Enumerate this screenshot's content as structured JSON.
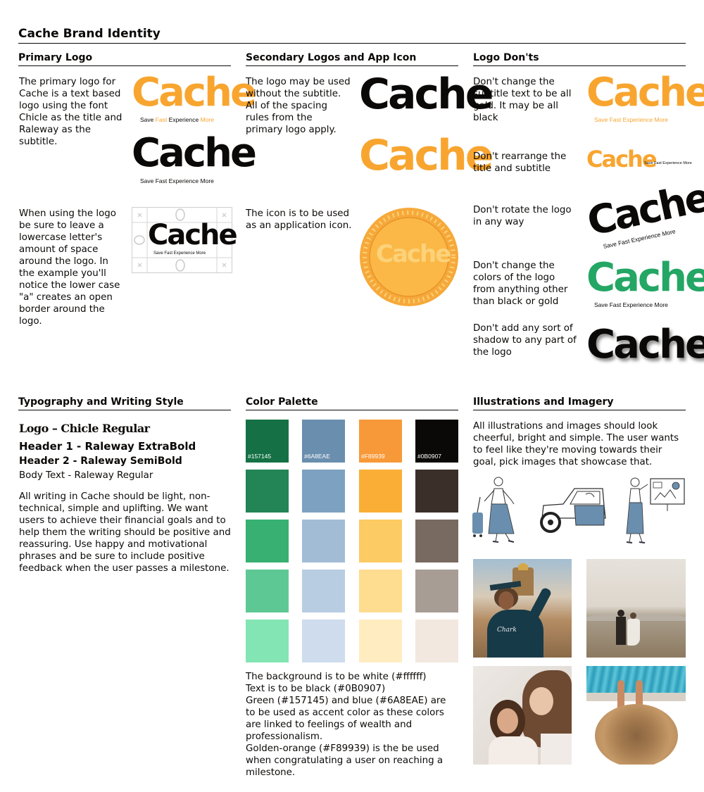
{
  "title": "Cache Brand Identity",
  "logo_word": "Cache",
  "logo_subtitle": {
    "w1": "Save",
    "w2": "Fast",
    "w3": "Experience",
    "w4": "More",
    "full": "Save Fast Experience More"
  },
  "primary_logo": {
    "heading": "Primary Logo",
    "text1": "The primary logo for Cache is a text based logo using the font Chicle as the title and Raleway as the subtitle.",
    "text2": "When using the logo be sure to leave a lowercase letter's amount of space around the logo. In the example you'll notice the lower case \"a\" creates an open border around the logo."
  },
  "secondary": {
    "heading": "Secondary Logos and App Icon",
    "text1": "The logo may be used without the subtitle. All of the spacing rules from the primary logo apply.",
    "text2": "The icon is to be used as an application icon."
  },
  "donts": {
    "heading": "Logo Don'ts",
    "items": [
      "Don't change the subtitle text to be all gold. It may be all black",
      "Don't rearrange the title and subtitle",
      "Don't rotate the logo in any way",
      "Don't change the colors of the logo from anything other than black or gold",
      "Don't add any sort of shadow to any part of the logo"
    ]
  },
  "typography": {
    "heading": "Typography and Writing Style",
    "logo_line": "Logo – Chicle Regular",
    "h1_line": "Header 1 - Raleway ExtraBold",
    "h2_line": "Header 2 - Raleway SemiBold",
    "body_line": "Body Text - Raleway Regular",
    "paragraph": "All writing in Cache should be light, non-technical, simple and uplifting. We want users to achieve their financial goals and to help them the writing should be positive and reassuring. Use happy and motivational phrases and be sure to include positive feedback when the user passes a milestone."
  },
  "palette": {
    "heading": "Color Palette",
    "labels": [
      "#157145",
      "#6A8EAE",
      "#F89939",
      "#0B0907"
    ],
    "columns": [
      [
        "#157145",
        "#238456",
        "#37b071",
        "#5ec895",
        "#83e5b4"
      ],
      [
        "#6a8eae",
        "#7da1c1",
        "#a2bcd6",
        "#b8cde2",
        "#cedced"
      ],
      [
        "#f89939",
        "#fbae36",
        "#fccb64",
        "#fedd90",
        "#ffecc0"
      ],
      [
        "#0b0907",
        "#3b2f2a",
        "#786a60",
        "#a79d95",
        "#f3e8df"
      ]
    ],
    "notes": [
      "The background is to be white (#ffffff)",
      "Text is to be black (#0B0907)",
      "Green (#157145) and blue (#6A8EAE) are to be used as accent color as these colors are linked to feelings of wealth and professionalism.",
      "Golden-orange (#F89939) is the be used when congratulating a user on reaching a milestone."
    ]
  },
  "imagery": {
    "heading": "Illustrations and Imagery",
    "text": "All illustrations and images should look cheerful, bright and simple. The user wants to feel like they're moving towards their goal, pick images that showcase that.",
    "sweater_text": "Chark"
  },
  "colors": {
    "gold": "#f8a530",
    "black": "#0b0907",
    "green": "#24a665",
    "blue": "#6a8eae"
  }
}
